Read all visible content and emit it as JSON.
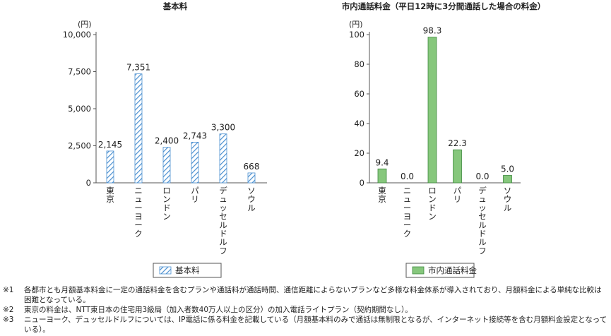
{
  "chart_data": [
    {
      "type": "bar",
      "title": "基本料",
      "unit_label": "(円)",
      "categories": [
        "東京",
        "ニューヨーク",
        "ロンドン",
        "パリ",
        "デュッセルドルフ",
        "ソウル"
      ],
      "values": [
        2145,
        7351,
        2400,
        2743,
        3300,
        668
      ],
      "value_labels": [
        "2,145",
        "7,351",
        "2,400",
        "2,743",
        "3,300",
        "668"
      ],
      "yticks": [
        0,
        2500,
        5000,
        7500,
        10000
      ],
      "ytick_labels": [
        "0",
        "2,500",
        "5,000",
        "7,500",
        "10,000"
      ],
      "ylim": [
        0,
        10000
      ],
      "grid": false,
      "legend": "基本料",
      "legend_position": "bottom-center",
      "bar_pattern": "diagonal-hatch",
      "bar_color": "#4a8fd0"
    },
    {
      "type": "bar",
      "title": "市内通話料金（平日12時に3分間通話した場合の料金）",
      "unit_label": "(円)",
      "categories": [
        "東京",
        "ニューヨーク",
        "ロンドン",
        "パリ",
        "デュッセルドルフ",
        "ソウル"
      ],
      "values": [
        9.4,
        0.0,
        98.3,
        22.3,
        0.0,
        5.0
      ],
      "value_labels": [
        "9.4",
        "0.0",
        "98.3",
        "22.3",
        "0.0",
        "5.0"
      ],
      "yticks": [
        0,
        20,
        40,
        60,
        80,
        100
      ],
      "ytick_labels": [
        "0",
        "20",
        "40",
        "60",
        "80",
        "100"
      ],
      "ylim": [
        0,
        100
      ],
      "grid": false,
      "legend": "市内通話料金",
      "legend_position": "bottom-center",
      "bar_color": "#86c77c"
    }
  ],
  "notes": [
    {
      "mark": "※1",
      "text": "各都市とも月額基本料金に一定の通話料金を含むプランや通話料が通話時間、通信距離によらないプランなど多様な料金体系が導入されており、月額料金による単純な比較は困難となっている。"
    },
    {
      "mark": "※2",
      "text": "東京の料金は、NTT東日本の住宅用3級局（加入者数40万人以上の区分）の加入電話ライトプラン（契約期間なし）。"
    },
    {
      "mark": "※3",
      "text": "ニューヨーク、デュッセルドルフについては、IP電話に係る料金を記載している（月額基本料のみで通話は無制限となるが、インターネット接続等を含む月額料金設定となっている）。"
    }
  ]
}
